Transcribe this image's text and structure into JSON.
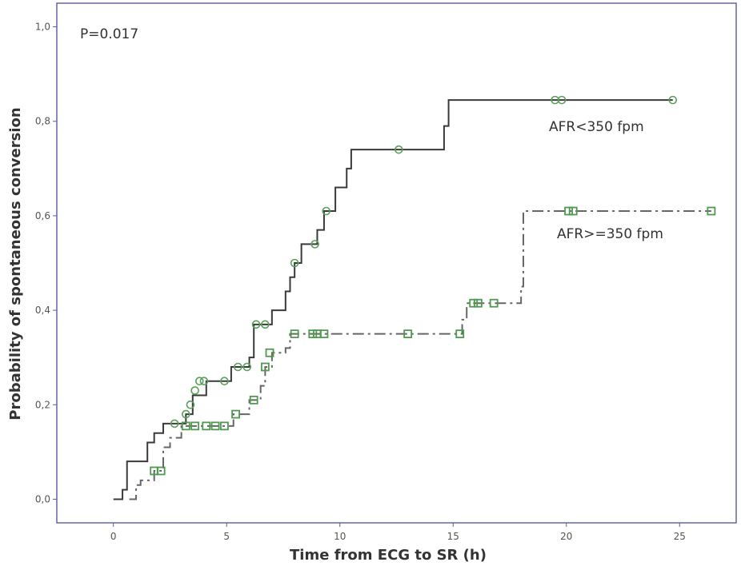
{
  "chart_data": {
    "type": "line",
    "subtype": "kaplan-meier step",
    "xlabel": "Time from ECG to SR (h)",
    "ylabel": "Probability of spontaneous conversion",
    "xlim": [
      -2.5,
      27.5
    ],
    "ylim": [
      -0.05,
      1.05
    ],
    "x_ticks": [
      0,
      5,
      10,
      15,
      20,
      25
    ],
    "x_tick_labels": [
      "0",
      "5",
      "10",
      "15",
      "20",
      "25"
    ],
    "y_ticks": [
      0.0,
      0.2,
      0.4,
      0.6,
      0.8,
      1.0
    ],
    "y_tick_labels": [
      "0,0",
      "0,2",
      "0,4",
      "0,6",
      "0,8",
      "1,0"
    ],
    "grid": false,
    "annotations": {
      "p_value": "P=0.017",
      "series1_label": "AFR<350 fpm",
      "series2_label": "AFR>=350 fpm"
    },
    "series": [
      {
        "name": "AFR<350 fpm",
        "color": "#3a3a3a",
        "censor_color": "#5aa05a",
        "line_style": "solid",
        "censor_marker": "circle",
        "steps": [
          [
            0,
            0.0
          ],
          [
            0.4,
            0.02
          ],
          [
            0.6,
            0.08
          ],
          [
            1.5,
            0.12
          ],
          [
            1.8,
            0.14
          ],
          [
            2.2,
            0.16
          ],
          [
            3.2,
            0.18
          ],
          [
            3.5,
            0.22
          ],
          [
            4.1,
            0.25
          ],
          [
            5.2,
            0.28
          ],
          [
            6.0,
            0.3
          ],
          [
            6.2,
            0.37
          ],
          [
            7.0,
            0.4
          ],
          [
            7.6,
            0.44
          ],
          [
            7.8,
            0.47
          ],
          [
            8.0,
            0.5
          ],
          [
            8.3,
            0.54
          ],
          [
            9.0,
            0.57
          ],
          [
            9.3,
            0.61
          ],
          [
            9.8,
            0.66
          ],
          [
            10.3,
            0.7
          ],
          [
            10.5,
            0.74
          ],
          [
            14.6,
            0.79
          ],
          [
            14.8,
            0.845
          ]
        ],
        "end_x": 24.7,
        "censored": [
          [
            2.7,
            0.16
          ],
          [
            3.2,
            0.18
          ],
          [
            3.4,
            0.2
          ],
          [
            3.6,
            0.23
          ],
          [
            3.8,
            0.25
          ],
          [
            4.0,
            0.25
          ],
          [
            4.9,
            0.25
          ],
          [
            5.5,
            0.28
          ],
          [
            5.9,
            0.28
          ],
          [
            6.3,
            0.37
          ],
          [
            6.7,
            0.37
          ],
          [
            8.0,
            0.5
          ],
          [
            8.9,
            0.54
          ],
          [
            9.4,
            0.61
          ],
          [
            12.6,
            0.74
          ],
          [
            19.5,
            0.845
          ],
          [
            19.8,
            0.845
          ],
          [
            24.7,
            0.845
          ]
        ]
      },
      {
        "name": "AFR>=350 fpm",
        "color": "#666666",
        "censor_color": "#4f9a4f",
        "line_style": "dash-dot",
        "censor_marker": "square",
        "steps": [
          [
            0.7,
            0.0
          ],
          [
            1.0,
            0.03
          ],
          [
            1.2,
            0.04
          ],
          [
            1.8,
            0.06
          ],
          [
            2.2,
            0.11
          ],
          [
            2.5,
            0.13
          ],
          [
            3.0,
            0.155
          ],
          [
            5.3,
            0.18
          ],
          [
            6.0,
            0.21
          ],
          [
            6.5,
            0.24
          ],
          [
            6.7,
            0.28
          ],
          [
            7.0,
            0.31
          ],
          [
            7.6,
            0.32
          ],
          [
            7.8,
            0.35
          ],
          [
            15.4,
            0.38
          ],
          [
            15.6,
            0.415
          ],
          [
            18.0,
            0.45
          ],
          [
            18.1,
            0.61
          ]
        ],
        "end_x": 26.4,
        "censored": [
          [
            1.8,
            0.06
          ],
          [
            2.1,
            0.06
          ],
          [
            3.2,
            0.155
          ],
          [
            3.6,
            0.155
          ],
          [
            4.1,
            0.155
          ],
          [
            4.5,
            0.155
          ],
          [
            4.9,
            0.155
          ],
          [
            5.4,
            0.18
          ],
          [
            6.2,
            0.21
          ],
          [
            6.7,
            0.28
          ],
          [
            6.9,
            0.31
          ],
          [
            8.0,
            0.35
          ],
          [
            8.8,
            0.35
          ],
          [
            9.0,
            0.35
          ],
          [
            9.3,
            0.35
          ],
          [
            13.0,
            0.35
          ],
          [
            15.3,
            0.35
          ],
          [
            15.9,
            0.415
          ],
          [
            16.1,
            0.415
          ],
          [
            16.8,
            0.415
          ],
          [
            20.1,
            0.61
          ],
          [
            20.3,
            0.61
          ],
          [
            26.4,
            0.61
          ]
        ]
      }
    ]
  }
}
